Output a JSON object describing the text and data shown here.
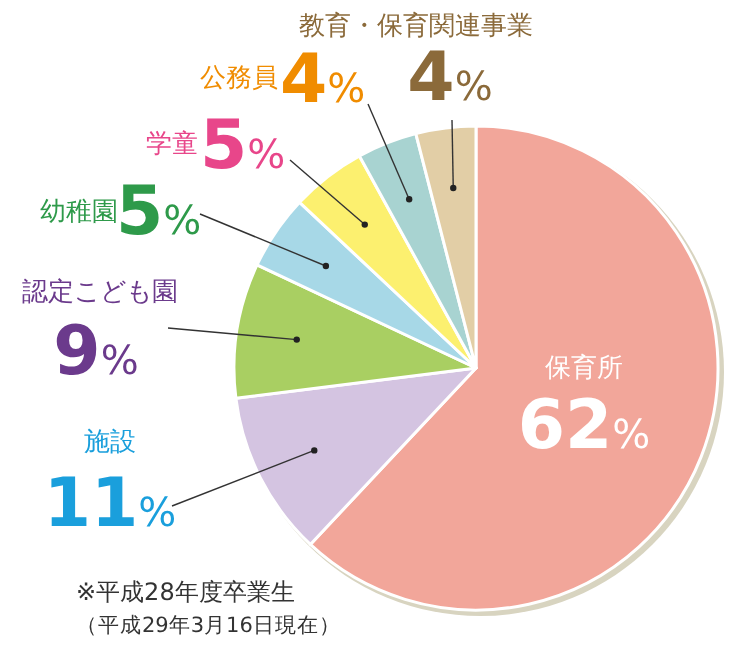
{
  "chart_data": {
    "type": "pie",
    "categories": [
      "保育所",
      "施設",
      "認定こども園",
      "幼稚園",
      "学童",
      "公務員",
      "教育・保育関連事業"
    ],
    "values": [
      62,
      11,
      9,
      5,
      5,
      4,
      4
    ],
    "value_labels": [
      "62%",
      "11%",
      "9%",
      "5%",
      "5%",
      "4%",
      "4%"
    ],
    "colors": [
      "#f2a69a",
      "#d4c4e1",
      "#a9cf62",
      "#a7d8e7",
      "#fcf06f",
      "#a8d3d1",
      "#e2cea6"
    ],
    "annotations": [
      "※平成28年度卒業生",
      "（平成29年3月16日現在）"
    ]
  }
}
